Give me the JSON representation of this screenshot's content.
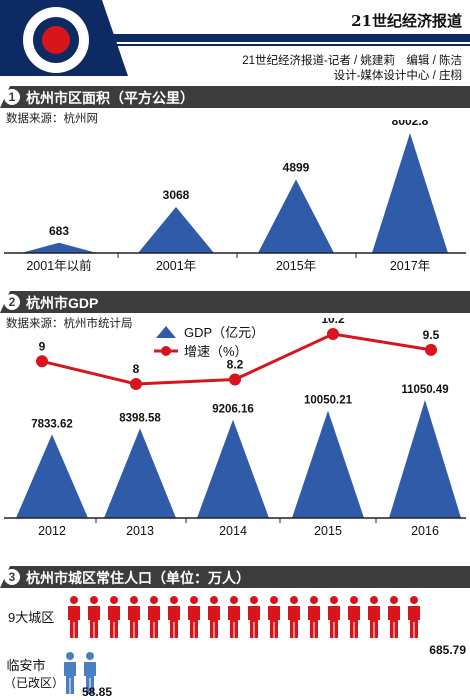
{
  "colors": {
    "accent": "#d8141c",
    "navy": "#0d2a63",
    "peak": "#2f5ba8",
    "dark_bar": "#3c3c3c",
    "person_red": "#d8141c",
    "person_blue": "#4a7fc0"
  },
  "header": {
    "brand": "21世纪经济报道",
    "credit_line1": "21世纪经济报道-记者 / 姚建莉　编辑 / 陈洁",
    "credit_line2": "设计-媒体设计中心 / 庄栩"
  },
  "sections": [
    {
      "number": "1",
      "title": "杭州市区面积（平方公里）",
      "source": "数据来源：杭州网"
    },
    {
      "number": "2",
      "title": "杭州市GDP",
      "source": "数据来源：杭州市统计局"
    },
    {
      "number": "3",
      "title": "杭州市城区常住人口（单位：万人）"
    }
  ],
  "chart_data": [
    {
      "type": "area",
      "categories": [
        "2001年以前",
        "2001年",
        "2015年",
        "2017年"
      ],
      "values": [
        683,
        3068,
        4899,
        8002.8
      ],
      "labels": [
        "683",
        "3068",
        "4899",
        "8002.8"
      ]
    },
    {
      "type": "bar",
      "categories": [
        "2012",
        "2013",
        "2014",
        "2015",
        "2016"
      ],
      "legend": {
        "gdp": "GDP（亿元）",
        "growth": "增速（%）"
      },
      "series": [
        {
          "name": "GDP（亿元）",
          "values": [
            7833.62,
            8398.58,
            9206.16,
            10050.21,
            11050.49
          ],
          "labels": [
            "7833.62",
            "8398.58",
            "9206.16",
            "10050.21",
            "11050.49"
          ]
        },
        {
          "name": "增速（%）",
          "type": "line",
          "values": [
            9,
            8,
            8.2,
            10.2,
            9.5
          ],
          "labels": [
            "9",
            "8",
            "8.2",
            "10.2",
            "9.5"
          ]
        }
      ]
    },
    {
      "type": "bar",
      "categories": [
        "9大城区",
        "临安市（已改区）"
      ],
      "category_lines": [
        [
          "9大城区"
        ],
        [
          "临安市",
          "（已改区）"
        ]
      ],
      "values": [
        685.79,
        58.85
      ],
      "labels": [
        "685.79",
        "58.85"
      ],
      "icon": "person-icon",
      "icon_counts": [
        18,
        2
      ]
    }
  ]
}
